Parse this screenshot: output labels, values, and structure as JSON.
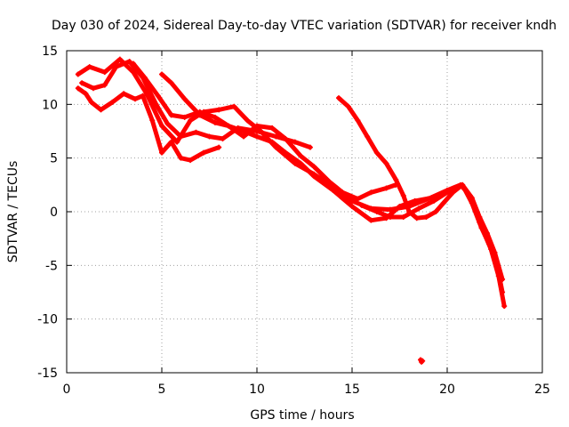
{
  "chart_data": {
    "type": "scatter",
    "title": "Day 030 of 2024, Sidereal Day-to-day VTEC variation (SDTVAR) for receiver kndh",
    "xlabel": "GPS time / hours",
    "ylabel": "SDTVAR / TECUs",
    "xlim": [
      0,
      25
    ],
    "ylim": [
      -15,
      15
    ],
    "xticks": [
      0,
      5,
      10,
      15,
      20,
      25
    ],
    "yticks": [
      -15,
      -10,
      -5,
      0,
      5,
      10,
      15
    ],
    "grid": true,
    "series_color": "#ff0000",
    "series": [
      {
        "name": "track-1",
        "points": [
          [
            0.6,
            12.8
          ],
          [
            1.2,
            13.5
          ],
          [
            2.0,
            13.0
          ],
          [
            2.8,
            14.2
          ],
          [
            3.5,
            13.0
          ],
          [
            4.2,
            11.0
          ],
          [
            5.0,
            8.0
          ],
          [
            5.8,
            6.5
          ],
          [
            6.5,
            8.5
          ],
          [
            7.2,
            9.3
          ],
          [
            8.0,
            9.5
          ],
          [
            8.8,
            9.8
          ],
          [
            9.5,
            8.5
          ],
          [
            10.2,
            7.5
          ],
          [
            11.0,
            6.0
          ],
          [
            12.0,
            4.5
          ],
          [
            13.0,
            3.5
          ],
          [
            14.0,
            2.3
          ],
          [
            15.0,
            1.0
          ],
          [
            16.0,
            0.3
          ],
          [
            17.0,
            0.2
          ],
          [
            18.0,
            0.5
          ],
          [
            19.0,
            1.2
          ],
          [
            20.0,
            2.0
          ],
          [
            20.7,
            2.5
          ],
          [
            21.2,
            1.5
          ],
          [
            21.7,
            -1.0
          ],
          [
            22.3,
            -3.5
          ],
          [
            22.7,
            -6.0
          ],
          [
            23.0,
            -8.8
          ]
        ]
      },
      {
        "name": "track-2",
        "points": [
          [
            0.8,
            12.0
          ],
          [
            1.4,
            11.5
          ],
          [
            2.0,
            11.8
          ],
          [
            2.6,
            13.5
          ],
          [
            3.3,
            14.0
          ],
          [
            4.0,
            12.5
          ],
          [
            4.7,
            10.0
          ],
          [
            5.3,
            8.2
          ],
          [
            6.0,
            7.0
          ],
          [
            6.8,
            7.4
          ],
          [
            7.5,
            7.0
          ],
          [
            8.2,
            6.8
          ],
          [
            9.0,
            7.8
          ],
          [
            10.0,
            7.5
          ],
          [
            11.0,
            7.0
          ],
          [
            12.0,
            6.5
          ],
          [
            12.8,
            6.0
          ]
        ]
      },
      {
        "name": "track-3",
        "points": [
          [
            0.6,
            11.5
          ],
          [
            1.0,
            11.0
          ],
          [
            1.3,
            10.2
          ],
          [
            1.8,
            9.5
          ],
          [
            2.4,
            10.2
          ],
          [
            3.0,
            11.0
          ],
          [
            3.6,
            10.5
          ],
          [
            4.0,
            10.8
          ],
          [
            4.5,
            8.5
          ],
          [
            5.0,
            5.5
          ],
          [
            5.5,
            6.5
          ],
          [
            6.0,
            5.0
          ],
          [
            6.5,
            4.8
          ],
          [
            7.2,
            5.5
          ],
          [
            8.0,
            6.0
          ]
        ]
      },
      {
        "name": "track-4",
        "points": [
          [
            3.5,
            13.8
          ],
          [
            4.1,
            12.5
          ],
          [
            4.8,
            10.8
          ],
          [
            5.5,
            9.0
          ],
          [
            6.2,
            8.8
          ],
          [
            7.0,
            9.3
          ],
          [
            7.8,
            8.8
          ],
          [
            8.5,
            8.0
          ],
          [
            9.3,
            7.0
          ],
          [
            10.0,
            8.0
          ],
          [
            10.8,
            7.8
          ],
          [
            11.5,
            6.8
          ],
          [
            12.3,
            5.2
          ],
          [
            13.0,
            4.2
          ],
          [
            13.8,
            2.8
          ],
          [
            14.5,
            1.8
          ],
          [
            15.3,
            1.2
          ],
          [
            16.0,
            1.8
          ],
          [
            16.8,
            2.2
          ],
          [
            17.3,
            2.5
          ]
        ]
      },
      {
        "name": "track-5",
        "points": [
          [
            5.0,
            12.8
          ],
          [
            5.5,
            12.0
          ],
          [
            6.2,
            10.5
          ],
          [
            7.0,
            9.0
          ],
          [
            7.8,
            8.3
          ],
          [
            8.5,
            8.0
          ],
          [
            9.3,
            7.5
          ],
          [
            10.0,
            7.0
          ],
          [
            10.8,
            6.5
          ],
          [
            11.5,
            5.5
          ],
          [
            12.3,
            4.5
          ],
          [
            13.0,
            3.3
          ],
          [
            14.0,
            2.0
          ],
          [
            15.0,
            0.5
          ],
          [
            16.0,
            -0.8
          ],
          [
            16.8,
            -0.6
          ],
          [
            17.5,
            0.5
          ],
          [
            18.3,
            1.0
          ],
          [
            19.2,
            1.3
          ]
        ]
      },
      {
        "name": "track-6",
        "points": [
          [
            14.3,
            10.6
          ],
          [
            14.8,
            9.8
          ],
          [
            15.3,
            8.5
          ],
          [
            15.8,
            7.0
          ],
          [
            16.3,
            5.5
          ],
          [
            16.8,
            4.5
          ],
          [
            17.3,
            3.0
          ],
          [
            17.7,
            1.5
          ],
          [
            18.0,
            0.0
          ],
          [
            18.4,
            -0.6
          ],
          [
            18.9,
            -0.5
          ],
          [
            19.4,
            0.0
          ],
          [
            19.8,
            0.8
          ],
          [
            20.3,
            1.8
          ],
          [
            20.8,
            2.5
          ],
          [
            21.3,
            1.3
          ],
          [
            21.7,
            -0.5
          ],
          [
            22.1,
            -2.0
          ],
          [
            22.5,
            -3.8
          ],
          [
            22.9,
            -6.3
          ]
        ]
      },
      {
        "name": "track-7",
        "points": [
          [
            15.5,
            0.6
          ],
          [
            16.3,
            0.0
          ],
          [
            17.0,
            -0.5
          ],
          [
            17.7,
            -0.5
          ],
          [
            18.5,
            0.3
          ],
          [
            19.3,
            1.0
          ],
          [
            20.0,
            1.8
          ],
          [
            20.8,
            2.5
          ],
          [
            21.3,
            0.8
          ],
          [
            21.8,
            -1.5
          ],
          [
            22.2,
            -3.0
          ],
          [
            22.6,
            -4.8
          ],
          [
            22.9,
            -7.5
          ]
        ]
      },
      {
        "name": "isolated-point",
        "points": [
          [
            18.6,
            -13.8
          ],
          [
            18.7,
            -13.9
          ],
          [
            18.65,
            -14.0
          ]
        ]
      }
    ]
  }
}
